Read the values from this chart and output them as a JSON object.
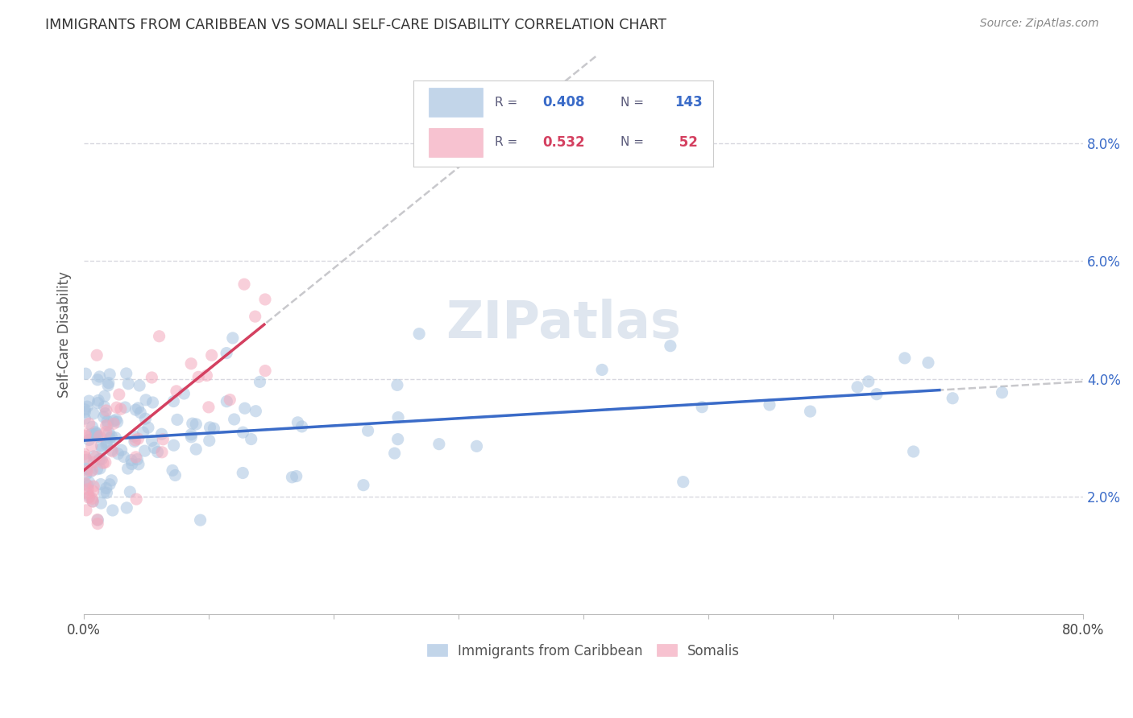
{
  "title": "IMMIGRANTS FROM CARIBBEAN VS SOMALI SELF-CARE DISABILITY CORRELATION CHART",
  "source": "Source: ZipAtlas.com",
  "ylabel": "Self-Care Disability",
  "legend_caribbean": {
    "R": 0.408,
    "N": 143
  },
  "legend_somali": {
    "R": 0.532,
    "N": 52
  },
  "blue_color": "#a8c4e0",
  "pink_color": "#f4a8bc",
  "trendline_blue": "#3a6bc8",
  "trendline_pink": "#d44060",
  "trendline_dashed_color": "#c8c8cc",
  "watermark": "ZIPatlas",
  "legend_blue_box": "#a8c4e0",
  "legend_pink_box": "#f4a8bc",
  "legend_text_color": "#5a5a7a",
  "legend_value_color": "#3a6bc8",
  "legend_value_pink_color": "#d44060",
  "yaxis_label_color": "#3a6bc8",
  "grid_color": "#d8d8e0",
  "title_color": "#333333",
  "source_color": "#888888"
}
